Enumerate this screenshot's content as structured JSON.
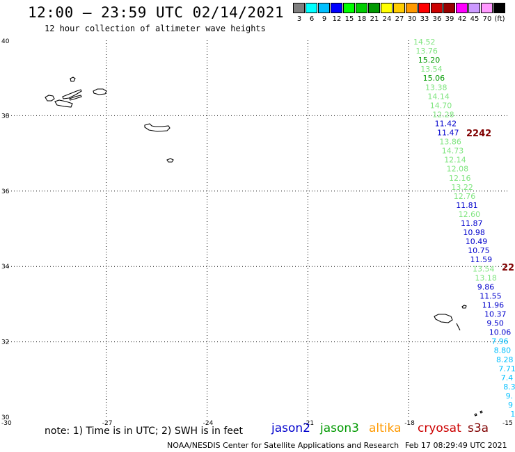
{
  "header": {
    "title": "12:00 – 23:59 UTC 02/14/2021",
    "subtitle": "12 hour collection of altimeter wave heights"
  },
  "colorbar": {
    "colors": [
      "#7f7f7f",
      "#00ffff",
      "#00bfff",
      "#0000ff",
      "#00ff00",
      "#00cc00",
      "#009900",
      "#ffff00",
      "#ffcc00",
      "#ff9900",
      "#ff0000",
      "#cc0000",
      "#990000",
      "#ff00ff",
      "#cc99ff",
      "#ff99ff",
      "#000000"
    ],
    "labels": [
      "3",
      "6",
      "9",
      "12",
      "15",
      "18",
      "21",
      "24",
      "27",
      "30",
      "33",
      "36",
      "39",
      "42",
      "45",
      "70",
      "(ft)"
    ]
  },
  "map": {
    "lat_labels": [
      "40",
      "38",
      "36",
      "34",
      "32",
      "30"
    ],
    "lon_labels": [
      "-30",
      "-27",
      "-24",
      "-21",
      "-18",
      "-15"
    ],
    "lat_values": [
      40,
      38,
      36,
      34,
      32,
      30
    ],
    "lon_values": [
      -30,
      -27,
      -24,
      -21,
      -18,
      -15
    ]
  },
  "pass_labels": [
    "2242",
    "22"
  ],
  "wave_heights": [
    {
      "text": "14.52",
      "color": "#7fe57f"
    },
    {
      "text": "13.76",
      "color": "#7fe57f"
    },
    {
      "text": "15.20",
      "color": "#009900"
    },
    {
      "text": "13.54",
      "color": "#7fe57f"
    },
    {
      "text": "15.06",
      "color": "#009900"
    },
    {
      "text": "13.38",
      "color": "#7fe57f"
    },
    {
      "text": "14.14",
      "color": "#7fe57f"
    },
    {
      "text": "14.70",
      "color": "#7fe57f"
    },
    {
      "text": "12.28",
      "color": "#7fe57f"
    },
    {
      "text": "11.42",
      "color": "#0000cc"
    },
    {
      "text": "11.47",
      "color": "#0000cc"
    },
    {
      "text": "13.86",
      "color": "#7fe57f"
    },
    {
      "text": "14.73",
      "color": "#7fe57f"
    },
    {
      "text": "12.14",
      "color": "#7fe57f"
    },
    {
      "text": "12.08",
      "color": "#7fe57f"
    },
    {
      "text": "12.16",
      "color": "#7fe57f"
    },
    {
      "text": "13.22",
      "color": "#7fe57f"
    },
    {
      "text": "12.76",
      "color": "#7fe57f"
    },
    {
      "text": "11.81",
      "color": "#0000cc"
    },
    {
      "text": "12.60",
      "color": "#7fe57f"
    },
    {
      "text": "11.87",
      "color": "#0000cc"
    },
    {
      "text": "10.98",
      "color": "#0000cc"
    },
    {
      "text": "10.49",
      "color": "#0000cc"
    },
    {
      "text": "10.75",
      "color": "#0000cc"
    },
    {
      "text": "11.59",
      "color": "#0000cc"
    },
    {
      "text": "13.54",
      "color": "#7fe57f"
    },
    {
      "text": "13.18",
      "color": "#7fe57f"
    },
    {
      "text": "9.86",
      "color": "#0000cc"
    },
    {
      "text": "11.55",
      "color": "#0000cc"
    },
    {
      "text": "11.96",
      "color": "#0000cc"
    },
    {
      "text": "10.37",
      "color": "#0000cc"
    },
    {
      "text": "9.50",
      "color": "#0000cc"
    },
    {
      "text": "10.06",
      "color": "#0000cc"
    },
    {
      "text": "7.96",
      "color": "#00bfff"
    },
    {
      "text": "8.80",
      "color": "#00bfff"
    },
    {
      "text": "8.28",
      "color": "#00bfff"
    },
    {
      "text": "7.71",
      "color": "#00bfff"
    },
    {
      "text": "7.4",
      "color": "#00bfff"
    },
    {
      "text": "8.3",
      "color": "#00bfff"
    },
    {
      "text": "9.",
      "color": "#00bfff"
    },
    {
      "text": "9",
      "color": "#00bfff"
    },
    {
      "text": "1",
      "color": "#00bfff"
    }
  ],
  "footer": {
    "note": "note:  1) Time is in UTC;  2) SWH is in feet",
    "legend": [
      {
        "text": "jason2",
        "color": "#0000cc"
      },
      {
        "text": "jason3",
        "color": "#009900"
      },
      {
        "text": "altika",
        "color": "#ff9900"
      },
      {
        "text": "cryosat",
        "color": "#cc0000"
      },
      {
        "text": "s3a",
        "color": "#800000"
      }
    ],
    "organization": "NOAA/NESDIS Center for Satellite Applications and Research",
    "timestamp": "Feb 17 08:29:49 UTC 2021"
  }
}
